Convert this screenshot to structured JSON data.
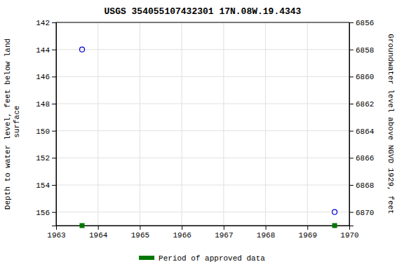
{
  "chart_data": {
    "type": "scatter",
    "title": "USGS 354055107432301 17N.08W.19.4343",
    "ylabel": "Depth to water level, feet below land\n surface",
    "y2label": "Groundwater level above NGVD 1929, feet",
    "xlim": [
      1963,
      1970
    ],
    "xticks": [
      1963,
      1964,
      1965,
      1966,
      1967,
      1968,
      1969,
      1970
    ],
    "ylim": [
      157,
      142
    ],
    "yticks": [
      142,
      144,
      146,
      148,
      150,
      152,
      154,
      156
    ],
    "y2lim": [
      6871,
      6856
    ],
    "y2ticks": [
      6856,
      6858,
      6860,
      6862,
      6864,
      6866,
      6868,
      6870
    ],
    "grid": true,
    "legend": "bottom",
    "series": [
      {
        "x": [
          1963.62,
          1969.65
        ],
        "values": [
          144.0,
          156.0
        ],
        "color": "#0000cc",
        "marker": "circle"
      },
      {
        "name": "Period of approved data",
        "x": [
          1963.62,
          1969.65
        ],
        "values": [
          157,
          157
        ],
        "color": "#007700",
        "marker": "square"
      }
    ]
  }
}
